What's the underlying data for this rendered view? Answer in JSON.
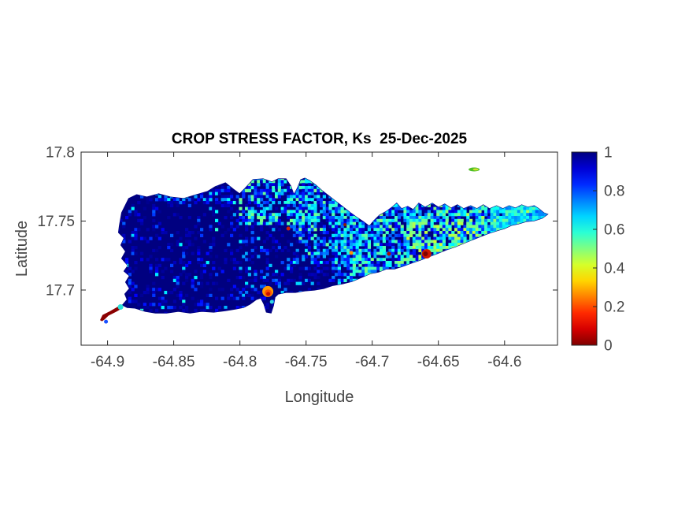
{
  "figure": {
    "background": "#ffffff",
    "axis_color": "#262626",
    "tick_label_color": "#464646",
    "title_color": "#000000"
  },
  "chart_data": {
    "type": "heatmap",
    "title": "CROP STRESS FACTOR, Ks  25-Dec-2025",
    "xlabel": "Longitude",
    "ylabel": "Latitude",
    "xlim": [
      -64.92,
      -64.56
    ],
    "ylim": [
      17.66,
      17.8
    ],
    "xticks": [
      -64.9,
      -64.85,
      -64.8,
      -64.75,
      -64.7,
      -64.65,
      -64.6
    ],
    "xtick_labels": [
      "-64.9",
      "-64.85",
      "-64.8",
      "-64.75",
      "-64.7",
      "-64.65",
      "-64.6"
    ],
    "yticks": [
      17.8,
      17.75,
      17.7
    ],
    "ytick_labels": [
      "17.8",
      "17.75",
      "17.7"
    ],
    "colorbar": {
      "colormap": "jet-reversed",
      "vmin": 0,
      "vmax": 1,
      "ticks": [
        0,
        0.2,
        0.4,
        0.6,
        0.8,
        1
      ],
      "tick_labels": [
        "0",
        "0.2",
        "0.4",
        "0.6",
        "0.8",
        "1"
      ]
    },
    "base_value": 1,
    "island": {
      "name": "st-croix",
      "outline": [
        [
          -64.8911,
          17.7463
        ],
        [
          -64.8893,
          17.756
        ],
        [
          -64.884,
          17.7663
        ],
        [
          -64.878,
          17.7691
        ],
        [
          -64.8703,
          17.7674
        ],
        [
          -64.8614,
          17.7697
        ],
        [
          -64.8525,
          17.7674
        ],
        [
          -64.8424,
          17.7663
        ],
        [
          -64.8329,
          17.7691
        ],
        [
          -64.8246,
          17.7714
        ],
        [
          -64.8186,
          17.7749
        ],
        [
          -64.8109,
          17.7777
        ],
        [
          -64.805,
          17.7731
        ],
        [
          -64.8002,
          17.7697
        ],
        [
          -64.7949,
          17.7749
        ],
        [
          -64.7901,
          17.78
        ],
        [
          -64.7824,
          17.7806
        ],
        [
          -64.7759,
          17.7783
        ],
        [
          -64.7711,
          17.7806
        ],
        [
          -64.7652,
          17.7806
        ],
        [
          -64.7616,
          17.7754
        ],
        [
          -64.7592,
          17.7691
        ],
        [
          -64.7563,
          17.7743
        ],
        [
          -64.7539,
          17.78
        ],
        [
          -64.7509,
          17.7811
        ],
        [
          -64.7474,
          17.7794
        ],
        [
          -64.7426,
          17.776
        ],
        [
          -64.7379,
          17.772
        ],
        [
          -64.7325,
          17.768
        ],
        [
          -64.7272,
          17.764
        ],
        [
          -64.7218,
          17.76
        ],
        [
          -64.7165,
          17.756
        ],
        [
          -64.7117,
          17.7526
        ],
        [
          -64.707,
          17.7497
        ],
        [
          -64.7022,
          17.7463
        ],
        [
          -64.6987,
          17.7503
        ],
        [
          -64.6945,
          17.7543
        ],
        [
          -64.6892,
          17.7571
        ],
        [
          -64.685,
          17.76
        ],
        [
          -64.6815,
          17.7629
        ],
        [
          -64.6779,
          17.7589
        ],
        [
          -64.6732,
          17.7606
        ],
        [
          -64.669,
          17.7583
        ],
        [
          -64.6648,
          17.7629
        ],
        [
          -64.6601,
          17.76
        ],
        [
          -64.6547,
          17.7629
        ],
        [
          -64.65,
          17.76
        ],
        [
          -64.6452,
          17.7623
        ],
        [
          -64.6405,
          17.7594
        ],
        [
          -64.6357,
          17.7617
        ],
        [
          -64.631,
          17.7589
        ],
        [
          -64.6256,
          17.7611
        ],
        [
          -64.6209,
          17.7589
        ],
        [
          -64.6161,
          17.7617
        ],
        [
          -64.6114,
          17.7589
        ],
        [
          -64.606,
          17.7611
        ],
        [
          -64.6013,
          17.7589
        ],
        [
          -64.5966,
          17.7611
        ],
        [
          -64.5918,
          17.7594
        ],
        [
          -64.5871,
          17.7617
        ],
        [
          -64.5824,
          17.76
        ],
        [
          -64.5776,
          17.7611
        ],
        [
          -64.5741,
          17.7589
        ],
        [
          -64.5705,
          17.756
        ],
        [
          -64.5675,
          17.7549
        ],
        [
          -64.5717,
          17.752
        ],
        [
          -64.5776,
          17.7503
        ],
        [
          -64.5836,
          17.7497
        ],
        [
          -64.5895,
          17.748
        ],
        [
          -64.5948,
          17.7469
        ],
        [
          -64.6002,
          17.7446
        ],
        [
          -64.6061,
          17.7429
        ],
        [
          -64.612,
          17.7411
        ],
        [
          -64.6179,
          17.7389
        ],
        [
          -64.6239,
          17.7366
        ],
        [
          -64.6298,
          17.7343
        ],
        [
          -64.6369,
          17.7314
        ],
        [
          -64.6441,
          17.7291
        ],
        [
          -64.6512,
          17.7263
        ],
        [
          -64.6577,
          17.724
        ],
        [
          -64.6637,
          17.7217
        ],
        [
          -64.6708,
          17.7194
        ],
        [
          -64.6773,
          17.7171
        ],
        [
          -64.6832,
          17.7154
        ],
        [
          -64.6892,
          17.7154
        ],
        [
          -64.6951,
          17.7131
        ],
        [
          -64.7011,
          17.712
        ],
        [
          -64.7082,
          17.7091
        ],
        [
          -64.7153,
          17.7063
        ],
        [
          -64.7224,
          17.7046
        ],
        [
          -64.7296,
          17.7034
        ],
        [
          -64.7367,
          17.7011
        ],
        [
          -64.7438,
          17.7
        ],
        [
          -64.7509,
          17.6994
        ],
        [
          -64.7581,
          17.6983
        ],
        [
          -64.7652,
          17.6983
        ],
        [
          -64.7711,
          17.6971
        ],
        [
          -64.7735,
          17.6949
        ],
        [
          -64.7747,
          17.6886
        ],
        [
          -64.7765,
          17.6834
        ],
        [
          -64.78,
          17.684
        ],
        [
          -64.7818,
          17.6897
        ],
        [
          -64.7842,
          17.6943
        ],
        [
          -64.7877,
          17.6931
        ],
        [
          -64.7925,
          17.6897
        ],
        [
          -64.7972,
          17.6874
        ],
        [
          -64.8032,
          17.6863
        ],
        [
          -64.8109,
          17.6851
        ],
        [
          -64.8198,
          17.684
        ],
        [
          -64.8287,
          17.6846
        ],
        [
          -64.8376,
          17.6834
        ],
        [
          -64.8465,
          17.6846
        ],
        [
          -64.8554,
          17.6834
        ],
        [
          -64.8638,
          17.6834
        ],
        [
          -64.8715,
          17.6846
        ],
        [
          -64.8792,
          17.6869
        ],
        [
          -64.8852,
          17.6874
        ],
        [
          -64.8887,
          17.6891
        ],
        [
          -64.8852,
          17.6931
        ],
        [
          -64.8869,
          17.6971
        ],
        [
          -64.8834,
          17.7011
        ],
        [
          -64.8863,
          17.7057
        ],
        [
          -64.8834,
          17.7103
        ],
        [
          -64.8875,
          17.7137
        ],
        [
          -64.8846,
          17.7177
        ],
        [
          -64.8893,
          17.7229
        ],
        [
          -64.8863,
          17.728
        ],
        [
          -64.8899,
          17.7326
        ],
        [
          -64.8875,
          17.7377
        ],
        [
          -64.8917,
          17.7417
        ]
      ]
    },
    "noise_zones": [
      {
        "name": "west-faint",
        "lon": [
          -64.92,
          -64.74
        ],
        "lat": [
          17.66,
          17.8
        ],
        "density": 0.06,
        "v": [
          0.78,
          0.93
        ]
      },
      {
        "name": "west-cyan-rare",
        "lon": [
          -64.92,
          -64.78
        ],
        "lat": [
          17.66,
          17.8
        ],
        "density": 0.012,
        "v": [
          0.58,
          0.72
        ]
      },
      {
        "name": "nw-coast-band",
        "lon": [
          -64.865,
          -64.8
        ],
        "lat": [
          17.762,
          17.786
        ],
        "density": 0.3,
        "v": [
          0.6,
          0.95
        ]
      },
      {
        "name": "north-central-1",
        "lon": [
          -64.8,
          -64.74
        ],
        "lat": [
          17.748,
          17.786
        ],
        "density": 0.55,
        "v": [
          0.5,
          0.95
        ]
      },
      {
        "name": "north-central-2",
        "lon": [
          -64.76,
          -64.705
        ],
        "lat": [
          17.72,
          17.786
        ],
        "density": 0.55,
        "v": [
          0.5,
          0.95
        ]
      },
      {
        "name": "north-central-3",
        "lon": [
          -64.73,
          -64.705
        ],
        "lat": [
          17.7,
          17.786
        ],
        "density": 0.6,
        "v": [
          0.52,
          0.95
        ]
      },
      {
        "name": "south-central-sparse",
        "lon": [
          -64.8,
          -64.73
        ],
        "lat": [
          17.69,
          17.748
        ],
        "density": 0.09,
        "v": [
          0.65,
          0.95
        ]
      },
      {
        "name": "east-west-half",
        "lon": [
          -64.705,
          -64.635
        ],
        "lat": [
          17.695,
          17.768
        ],
        "density": 0.72,
        "v": [
          0.48,
          0.92
        ]
      },
      {
        "name": "east-east-half",
        "lon": [
          -64.635,
          -64.556
        ],
        "lat": [
          17.7,
          17.768
        ],
        "density": 0.82,
        "v": [
          0.45,
          0.88
        ]
      },
      {
        "name": "east-yellow-clusters",
        "lon": [
          -64.675,
          -64.615
        ],
        "lat": [
          17.715,
          17.752
        ],
        "density": 0.25,
        "v": [
          0.42,
          0.55
        ]
      },
      {
        "name": "east-tip-teal",
        "lon": [
          -64.61,
          -64.556
        ],
        "lat": [
          17.74,
          17.77
        ],
        "density": 0.9,
        "v": [
          0.52,
          0.75
        ]
      }
    ],
    "hotspots": [
      {
        "name": "sandy-point-streak",
        "type": "polygon",
        "color": "#8b0000",
        "points": [
          [
            -64.9053,
            17.6783
          ],
          [
            -64.9036,
            17.6817
          ],
          [
            -64.8988,
            17.684
          ],
          [
            -64.8935,
            17.6869
          ],
          [
            -64.8905,
            17.6886
          ],
          [
            -64.8893,
            17.6869
          ],
          [
            -64.8935,
            17.6846
          ],
          [
            -64.8994,
            17.6817
          ],
          [
            -64.9024,
            17.6789
          ],
          [
            -64.9042,
            17.6777
          ]
        ]
      },
      {
        "name": "sandy-point-cyan",
        "type": "dot",
        "color": "#2adfd8",
        "lon": -64.8902,
        "lat": 17.6877,
        "r": 3.5
      },
      {
        "name": "sandy-point-blue-dot",
        "type": "dot",
        "color": "#1a50ff",
        "lon": -64.9012,
        "lat": 17.6771,
        "r": 2.5
      },
      {
        "name": "south-shore-spot-outer",
        "type": "dot",
        "color": "#ff9800",
        "lon": -64.7789,
        "lat": 17.6989,
        "r": 7
      },
      {
        "name": "south-shore-spot-mid",
        "type": "dot",
        "color": "#ff5000",
        "lon": -64.7786,
        "lat": 17.6979,
        "r": 4.5
      },
      {
        "name": "south-shore-spot-core",
        "type": "dot",
        "color": "#c81000",
        "lon": -64.7786,
        "lat": 17.6972,
        "r": 2.5
      },
      {
        "name": "south-shore-cyan",
        "type": "dot",
        "color": "#30d8e0",
        "lon": -64.7759,
        "lat": 17.6914,
        "r": 2.5
      },
      {
        "name": "east-coast-spot-outer",
        "type": "dot",
        "color": "#cc1500",
        "lon": -64.6589,
        "lat": 17.7263,
        "r": 6
      },
      {
        "name": "east-coast-spot-core",
        "type": "dot",
        "color": "#7f0000",
        "lon": -64.6597,
        "lat": 17.7263,
        "r": 3
      },
      {
        "name": "north-notch-speck",
        "type": "dot",
        "color": "#d02000",
        "lon": -64.7634,
        "lat": 17.7446,
        "r": 2.5
      },
      {
        "name": "mid-orange-speck",
        "type": "dot",
        "color": "#ff9000",
        "lon": -64.7159,
        "lat": 17.7269,
        "r": 2.5
      },
      {
        "name": "mid-red-speck",
        "type": "dot",
        "color": "#a81000",
        "lon": -64.6874,
        "lat": 17.7263,
        "r": 2.5
      },
      {
        "name": "ne-coast-speck",
        "type": "dot",
        "color": "#8b2000",
        "lon": -64.7206,
        "lat": 17.7474,
        "r": 2
      }
    ],
    "satellite_islets": [
      {
        "name": "buck-island",
        "lon": -64.623,
        "lat": 17.7874,
        "rx": 7,
        "ry": 2.5,
        "outer_color": "#4fbe28",
        "inner_color": "#d2e22e"
      }
    ]
  }
}
